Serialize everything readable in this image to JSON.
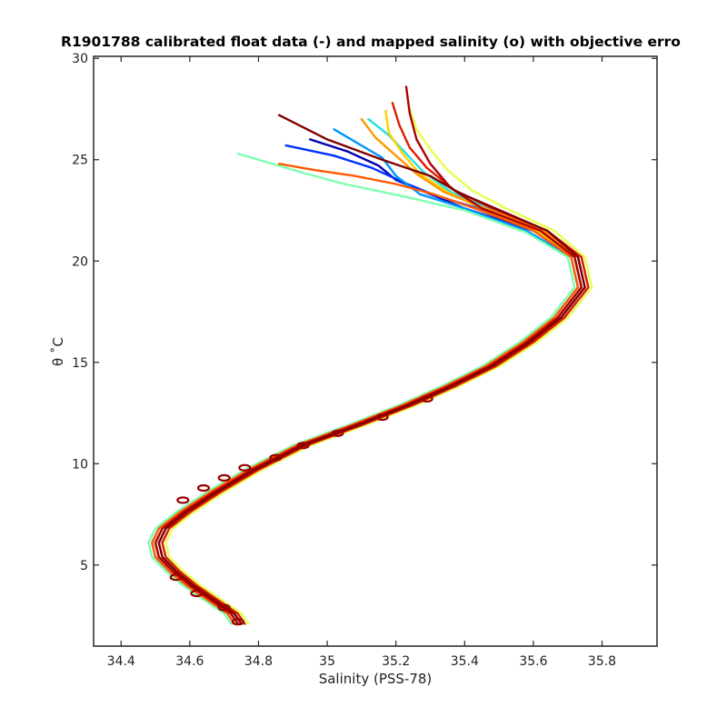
{
  "chart_data": {
    "type": "line",
    "title": "R1901788 calibrated float data (-) and mapped salinity (o) with objective erro",
    "xlabel": "Salinity (PSS-78)",
    "ylabel": "θ ˚C",
    "xlim": [
      34.32,
      35.96
    ],
    "ylim": [
      1,
      30.1
    ],
    "xticks": [
      34.4,
      34.6,
      34.8,
      35,
      35.2,
      35.4,
      35.6,
      35.8
    ],
    "xtick_labels": [
      "34.4",
      "34.6",
      "34.8",
      "35",
      "35.2",
      "35.4",
      "35.6",
      "35.8"
    ],
    "yticks": [
      5,
      10,
      15,
      20,
      25,
      30
    ],
    "ytick_labels": [
      "5",
      "10",
      "15",
      "20",
      "25",
      "30"
    ],
    "grid": false,
    "colormap": "jet (profile order: dark blue → dark red)",
    "profile_colors": [
      "#0000b4",
      "#0032ff",
      "#0096ff",
      "#22e0e0",
      "#7dffb0",
      "#e6ff4a",
      "#ffd000",
      "#ff9a00",
      "#ff5a00",
      "#e11a00",
      "#b00000",
      "#800000"
    ],
    "series": [
      {
        "x": [
          34.74,
          34.72,
          34.66,
          34.6,
          34.55,
          34.51,
          34.5,
          34.52,
          34.58,
          34.67,
          34.78,
          34.92,
          35.08,
          35.23,
          35.35,
          35.47,
          35.58,
          35.67,
          35.74,
          35.72,
          35.6,
          35.4,
          35.3,
          35.2,
          35.15,
          35.06,
          34.95
        ],
        "y": [
          2.1,
          2.6,
          3.3,
          4.0,
          4.7,
          5.4,
          6.1,
          6.8,
          7.6,
          8.6,
          9.7,
          10.9,
          11.9,
          12.9,
          13.8,
          14.8,
          16.0,
          17.2,
          18.7,
          20.2,
          21.5,
          22.6,
          23.3,
          24.0,
          24.7,
          25.4,
          26.0
        ]
      },
      {
        "x": [
          34.75,
          34.73,
          34.67,
          34.61,
          34.56,
          34.52,
          34.51,
          34.53,
          34.59,
          34.68,
          34.79,
          34.93,
          35.09,
          35.24,
          35.36,
          35.48,
          35.59,
          35.68,
          35.75,
          35.73,
          35.62,
          35.44,
          35.32,
          35.22,
          35.13,
          35.02,
          34.88
        ],
        "y": [
          2.1,
          2.6,
          3.3,
          4.0,
          4.7,
          5.4,
          6.1,
          6.8,
          7.6,
          8.6,
          9.7,
          10.9,
          11.9,
          12.9,
          13.8,
          14.8,
          16.0,
          17.2,
          18.7,
          20.2,
          21.5,
          22.6,
          23.2,
          23.9,
          24.6,
          25.2,
          25.7
        ]
      },
      {
        "x": [
          34.73,
          34.71,
          34.65,
          34.59,
          34.54,
          34.5,
          34.49,
          34.51,
          34.57,
          34.66,
          34.77,
          34.91,
          35.07,
          35.22,
          35.34,
          35.46,
          35.57,
          35.66,
          35.73,
          35.71,
          35.58,
          35.4,
          35.27,
          35.2,
          35.16,
          35.08,
          35.02
        ],
        "y": [
          2.1,
          2.6,
          3.3,
          4.0,
          4.7,
          5.4,
          6.1,
          6.8,
          7.6,
          8.6,
          9.7,
          10.9,
          11.9,
          12.9,
          13.8,
          14.8,
          16.0,
          17.2,
          18.7,
          20.2,
          21.5,
          22.6,
          23.3,
          24.2,
          25.1,
          25.9,
          26.5
        ]
      },
      {
        "x": [
          34.76,
          34.74,
          34.68,
          34.62,
          34.57,
          34.53,
          34.52,
          34.54,
          34.6,
          34.69,
          34.8,
          34.94,
          35.1,
          35.25,
          35.37,
          35.49,
          35.6,
          35.69,
          35.76,
          35.74,
          35.64,
          35.47,
          35.36,
          35.28,
          35.23,
          35.18,
          35.12
        ],
        "y": [
          2.1,
          2.6,
          3.3,
          4.0,
          4.7,
          5.4,
          6.1,
          6.8,
          7.6,
          8.6,
          9.7,
          10.9,
          11.9,
          12.9,
          13.8,
          14.8,
          16.0,
          17.2,
          18.7,
          20.2,
          21.5,
          22.6,
          23.4,
          24.4,
          25.3,
          26.2,
          27.0
        ]
      },
      {
        "x": [
          34.72,
          34.7,
          34.64,
          34.58,
          34.53,
          34.49,
          34.48,
          34.5,
          34.56,
          34.65,
          34.76,
          34.9,
          35.06,
          35.21,
          35.33,
          35.45,
          35.56,
          35.65,
          35.72,
          35.7,
          35.58,
          35.4,
          35.22,
          35.05,
          34.92,
          34.82,
          34.74
        ],
        "y": [
          2.1,
          2.6,
          3.3,
          4.0,
          4.7,
          5.4,
          6.1,
          6.8,
          7.6,
          8.6,
          9.7,
          10.9,
          11.9,
          12.9,
          13.8,
          14.8,
          16.0,
          17.2,
          18.7,
          20.2,
          21.4,
          22.5,
          23.2,
          23.8,
          24.4,
          24.9,
          25.3
        ]
      },
      {
        "x": [
          34.77,
          34.75,
          34.69,
          34.63,
          34.58,
          34.54,
          34.53,
          34.55,
          34.61,
          34.7,
          34.81,
          34.95,
          35.11,
          35.26,
          35.38,
          35.5,
          35.61,
          35.7,
          35.77,
          35.75,
          35.66,
          35.52,
          35.42,
          35.35,
          35.3,
          35.26,
          35.24
        ],
        "y": [
          2.1,
          2.6,
          3.3,
          4.0,
          4.7,
          5.4,
          6.1,
          6.8,
          7.6,
          8.6,
          9.7,
          10.9,
          11.9,
          12.9,
          13.8,
          14.8,
          16.0,
          17.2,
          18.7,
          20.2,
          21.5,
          22.6,
          23.5,
          24.5,
          25.5,
          26.5,
          27.5
        ]
      },
      {
        "x": [
          34.74,
          34.72,
          34.66,
          34.6,
          34.55,
          34.51,
          34.5,
          34.52,
          34.58,
          34.67,
          34.78,
          34.92,
          35.08,
          35.23,
          35.35,
          35.47,
          35.58,
          35.67,
          35.74,
          35.72,
          35.61,
          35.45,
          35.35,
          35.27,
          35.22,
          35.18,
          35.17
        ],
        "y": [
          2.1,
          2.6,
          3.3,
          4.0,
          4.7,
          5.4,
          6.1,
          6.8,
          7.6,
          8.6,
          9.7,
          10.9,
          11.9,
          12.9,
          13.8,
          14.8,
          16.0,
          17.2,
          18.7,
          20.2,
          21.5,
          22.6,
          23.4,
          24.3,
          25.3,
          26.3,
          27.4
        ]
      },
      {
        "x": [
          34.75,
          34.73,
          34.67,
          34.61,
          34.56,
          34.52,
          34.51,
          34.53,
          34.59,
          34.68,
          34.79,
          34.93,
          35.09,
          35.24,
          35.36,
          35.48,
          35.59,
          35.68,
          35.75,
          35.73,
          35.63,
          35.46,
          35.34,
          35.26,
          35.2,
          35.14,
          35.1
        ],
        "y": [
          2.1,
          2.6,
          3.3,
          4.0,
          4.7,
          5.4,
          6.1,
          6.8,
          7.6,
          8.6,
          9.7,
          10.9,
          11.9,
          12.9,
          13.8,
          14.8,
          16.0,
          17.2,
          18.7,
          20.2,
          21.5,
          22.6,
          23.4,
          24.3,
          25.2,
          26.1,
          27.0
        ]
      },
      {
        "x": [
          34.73,
          34.71,
          34.65,
          34.59,
          34.54,
          34.5,
          34.49,
          34.51,
          34.57,
          34.66,
          34.77,
          34.91,
          35.07,
          35.22,
          35.34,
          35.46,
          35.57,
          35.66,
          35.73,
          35.71,
          35.6,
          35.43,
          35.31,
          35.2,
          35.08,
          34.96,
          34.86
        ],
        "y": [
          2.1,
          2.6,
          3.3,
          4.0,
          4.7,
          5.4,
          6.1,
          6.8,
          7.6,
          8.6,
          9.7,
          10.9,
          11.9,
          12.9,
          13.8,
          14.8,
          16.0,
          17.2,
          18.7,
          20.2,
          21.5,
          22.6,
          23.3,
          23.8,
          24.2,
          24.5,
          24.8
        ]
      },
      {
        "x": [
          34.76,
          34.74,
          34.68,
          34.62,
          34.57,
          34.53,
          34.52,
          34.54,
          34.6,
          34.69,
          34.8,
          34.94,
          35.1,
          35.25,
          35.37,
          35.49,
          35.6,
          35.69,
          35.76,
          35.74,
          35.64,
          35.48,
          35.37,
          35.29,
          35.24,
          35.21,
          35.19
        ],
        "y": [
          2.1,
          2.6,
          3.3,
          4.0,
          4.7,
          5.4,
          6.1,
          6.8,
          7.6,
          8.6,
          9.7,
          10.9,
          11.9,
          12.9,
          13.8,
          14.8,
          16.0,
          17.2,
          18.7,
          20.2,
          21.5,
          22.6,
          23.5,
          24.6,
          25.6,
          26.7,
          27.8
        ]
      },
      {
        "x": [
          34.74,
          34.72,
          34.66,
          34.6,
          34.55,
          34.51,
          34.5,
          34.52,
          34.58,
          34.67,
          34.78,
          34.92,
          35.08,
          35.23,
          35.35,
          35.47,
          35.58,
          35.67,
          35.74,
          35.72,
          35.62,
          35.45,
          35.36,
          35.3,
          35.26,
          35.24,
          35.23
        ],
        "y": [
          2.1,
          2.6,
          3.3,
          4.0,
          4.7,
          5.4,
          6.1,
          6.8,
          7.6,
          8.6,
          9.7,
          10.9,
          11.9,
          12.9,
          13.8,
          14.8,
          16.0,
          17.2,
          18.7,
          20.2,
          21.5,
          22.6,
          23.6,
          24.8,
          26.0,
          27.3,
          28.6
        ]
      },
      {
        "x": [
          34.75,
          34.73,
          34.67,
          34.61,
          34.56,
          34.52,
          34.51,
          34.53,
          34.59,
          34.68,
          34.79,
          34.93,
          35.09,
          35.24,
          35.36,
          35.48,
          35.59,
          35.68,
          35.75,
          35.73,
          35.64,
          35.49,
          35.38,
          35.3,
          35.16,
          35.0,
          34.86
        ],
        "y": [
          2.1,
          2.6,
          3.3,
          4.0,
          4.7,
          5.4,
          6.1,
          6.8,
          7.6,
          8.6,
          9.7,
          10.9,
          11.9,
          12.9,
          13.8,
          14.8,
          16.0,
          17.2,
          18.7,
          20.2,
          21.5,
          22.6,
          23.4,
          24.2,
          25.0,
          26.0,
          27.2
        ]
      }
    ],
    "mapped_salinity_markers": {
      "x": [
        34.74,
        34.7,
        34.62,
        34.56,
        34.58,
        34.64,
        34.7,
        34.76,
        34.85,
        34.93,
        35.03,
        35.16,
        35.29
      ],
      "y": [
        2.2,
        2.9,
        3.6,
        4.4,
        8.2,
        8.8,
        9.3,
        9.8,
        10.3,
        10.9,
        11.5,
        12.3,
        13.2
      ]
    }
  }
}
